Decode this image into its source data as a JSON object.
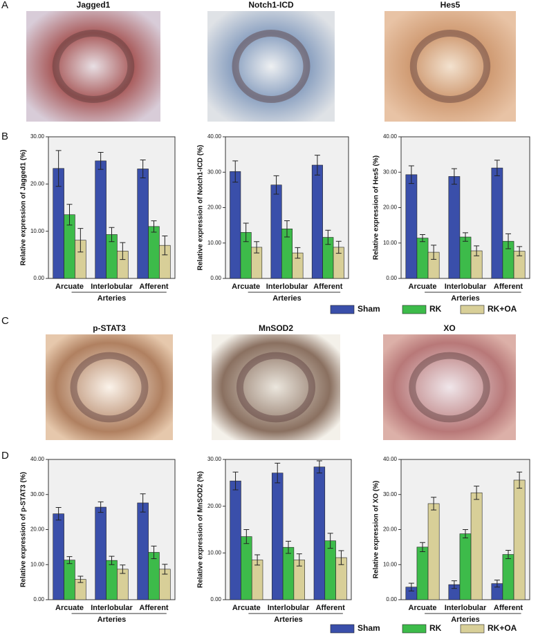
{
  "panel_labels": [
    "A",
    "B",
    "C",
    "D"
  ],
  "micrograph_titles": [
    "Jagged1",
    "Notch1-ICD",
    "Hes5",
    "p-STAT3",
    "MnSOD2",
    "XO"
  ],
  "chart_data": [
    {
      "type": "bar",
      "ylabel": "Relative expression of Jagged1 (%)",
      "xlabel": "Arteries",
      "categories": [
        "Arcuate",
        "Interlobular",
        "Afferent"
      ],
      "ylim": [
        0,
        30
      ],
      "yticks": [
        {
          "value": 0,
          "label": "0.00"
        },
        {
          "value": 10,
          "label": "10.00"
        },
        {
          "value": 20,
          "label": "20.00"
        },
        {
          "value": 30,
          "label": "30.00"
        }
      ],
      "series": [
        {
          "name": "Sham",
          "color": "#3a4faa",
          "values": [
            23.3,
            24.9,
            23.2
          ],
          "errors": [
            3.8,
            1.8,
            1.9
          ]
        },
        {
          "name": "RK",
          "color": "#3dbb4a",
          "values": [
            13.5,
            9.3,
            11.0
          ],
          "errors": [
            2.2,
            1.5,
            1.2
          ]
        },
        {
          "name": "RK+OA",
          "color": "#d8cf98",
          "values": [
            8.1,
            5.8,
            7.0
          ],
          "errors": [
            2.5,
            1.8,
            2.0
          ]
        }
      ]
    },
    {
      "type": "bar",
      "ylabel": "Relative expression of Notch1-ICD (%)",
      "xlabel": "Arteries",
      "categories": [
        "Arcuate",
        "Interlobular",
        "Afferent"
      ],
      "ylim": [
        0,
        40
      ],
      "yticks": [
        {
          "value": 0,
          "label": "0.00"
        },
        {
          "value": 10,
          "label": "10.00"
        },
        {
          "value": 20,
          "label": "20.00"
        },
        {
          "value": 30,
          "label": "30.00"
        },
        {
          "value": 40,
          "label": "40.00"
        }
      ],
      "series": [
        {
          "name": "Sham",
          "color": "#3a4faa",
          "values": [
            30.2,
            26.4,
            32.0
          ],
          "errors": [
            3.0,
            2.6,
            2.8
          ]
        },
        {
          "name": "RK",
          "color": "#3dbb4a",
          "values": [
            13.0,
            14.0,
            11.6
          ],
          "errors": [
            2.6,
            2.3,
            2.0
          ]
        },
        {
          "name": "RK+OA",
          "color": "#d8cf98",
          "values": [
            8.8,
            7.2,
            8.8
          ],
          "errors": [
            1.6,
            1.5,
            1.7
          ]
        }
      ]
    },
    {
      "type": "bar",
      "ylabel": "Relative expression of Hes5 (%)",
      "xlabel": "Arteries",
      "categories": [
        "Arcuate",
        "Interlobular",
        "Afferent"
      ],
      "ylim": [
        0,
        40
      ],
      "yticks": [
        {
          "value": 0,
          "label": "0.00"
        },
        {
          "value": 10,
          "label": "10.00"
        },
        {
          "value": 20,
          "label": "20.00"
        },
        {
          "value": 30,
          "label": "30.00"
        },
        {
          "value": 40,
          "label": "40.00"
        }
      ],
      "series": [
        {
          "name": "Sham",
          "color": "#3a4faa",
          "values": [
            29.3,
            28.8,
            31.2
          ],
          "errors": [
            2.5,
            2.2,
            2.2
          ]
        },
        {
          "name": "RK",
          "color": "#3dbb4a",
          "values": [
            11.4,
            11.7,
            10.5
          ],
          "errors": [
            1.0,
            1.2,
            2.1
          ]
        },
        {
          "name": "RK+OA",
          "color": "#d8cf98",
          "values": [
            7.4,
            7.8,
            7.7
          ],
          "errors": [
            2.0,
            1.4,
            1.3
          ]
        }
      ]
    },
    {
      "type": "bar",
      "ylabel": "Relative expression of p-STAT3 (%)",
      "xlabel": "Arteries",
      "categories": [
        "Arcuate",
        "Interlobular",
        "Afferent"
      ],
      "ylim": [
        0,
        40
      ],
      "yticks": [
        {
          "value": 0,
          "label": "0.00"
        },
        {
          "value": 10,
          "label": "10.00"
        },
        {
          "value": 20,
          "label": "20.00"
        },
        {
          "value": 30,
          "label": "30.00"
        },
        {
          "value": 40,
          "label": "40.00"
        }
      ],
      "series": [
        {
          "name": "Sham",
          "color": "#3a4faa",
          "values": [
            24.5,
            26.4,
            27.6
          ],
          "errors": [
            1.8,
            1.5,
            2.6
          ]
        },
        {
          "name": "RK",
          "color": "#3dbb4a",
          "values": [
            11.3,
            11.2,
            13.5
          ],
          "errors": [
            1.0,
            1.2,
            1.8
          ]
        },
        {
          "name": "RK+OA",
          "color": "#d8cf98",
          "values": [
            5.8,
            8.7,
            8.7
          ],
          "errors": [
            0.9,
            1.2,
            1.4
          ]
        }
      ]
    },
    {
      "type": "bar",
      "ylabel": "Relative expression of MnSOD2 (%)",
      "xlabel": "Arteries",
      "categories": [
        "Arcuate",
        "Interlobular",
        "Afferent"
      ],
      "ylim": [
        0,
        30
      ],
      "yticks": [
        {
          "value": 0,
          "label": "0.00"
        },
        {
          "value": 10,
          "label": "10.00"
        },
        {
          "value": 20,
          "label": "20.00"
        },
        {
          "value": 30,
          "label": "30.00"
        }
      ],
      "series": [
        {
          "name": "Sham",
          "color": "#3a4faa",
          "values": [
            25.4,
            27.1,
            28.4
          ],
          "errors": [
            1.9,
            2.1,
            1.3
          ]
        },
        {
          "name": "RK",
          "color": "#3dbb4a",
          "values": [
            13.5,
            11.2,
            12.6
          ],
          "errors": [
            1.5,
            1.3,
            1.6
          ]
        },
        {
          "name": "RK+OA",
          "color": "#d8cf98",
          "values": [
            8.5,
            8.5,
            9.0
          ],
          "errors": [
            1.1,
            1.3,
            1.5
          ]
        }
      ]
    },
    {
      "type": "bar",
      "ylabel": "Relative expression of XO (%)",
      "xlabel": "Arteries",
      "categories": [
        "Arcuate",
        "Interlobular",
        "Afferent"
      ],
      "ylim": [
        0,
        40
      ],
      "yticks": [
        {
          "value": 0,
          "label": "0.00"
        },
        {
          "value": 10,
          "label": "10.00"
        },
        {
          "value": 20,
          "label": "20.00"
        },
        {
          "value": 30,
          "label": "30.00"
        },
        {
          "value": 40,
          "label": "40.00"
        }
      ],
      "series": [
        {
          "name": "Sham",
          "color": "#3a4faa",
          "values": [
            3.6,
            4.3,
            4.6
          ],
          "errors": [
            1.1,
            1.1,
            1.0
          ]
        },
        {
          "name": "RK",
          "color": "#3dbb4a",
          "values": [
            15.0,
            18.8,
            12.9
          ],
          "errors": [
            1.3,
            1.2,
            1.2
          ]
        },
        {
          "name": "RK+OA",
          "color": "#d8cf98",
          "values": [
            27.4,
            30.5,
            34.1
          ],
          "errors": [
            1.8,
            1.9,
            2.3
          ]
        }
      ]
    }
  ]
}
